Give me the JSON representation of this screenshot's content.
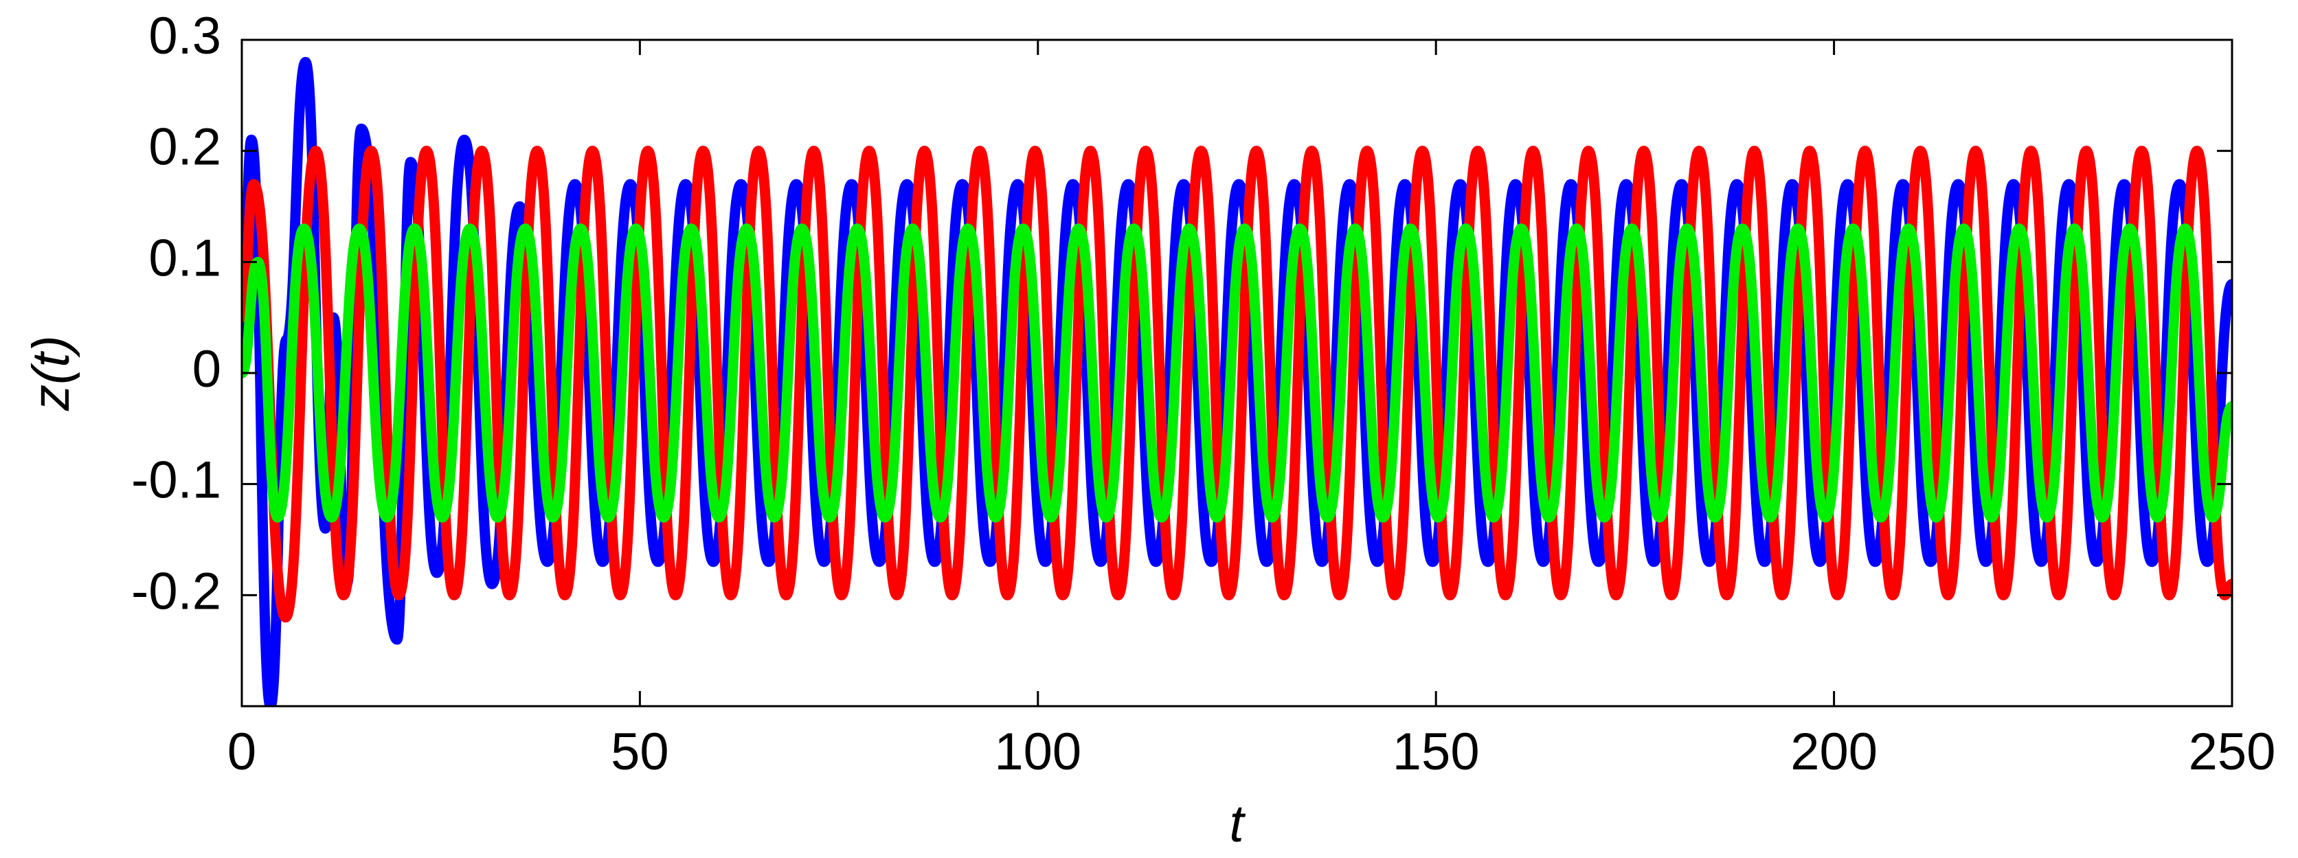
{
  "chart_data": {
    "type": "line",
    "xlabel": "t",
    "ylabel": "z(t)",
    "xlim": [
      0,
      250
    ],
    "ylim": [
      -0.3,
      0.3
    ],
    "xticks": [
      0,
      50,
      100,
      150,
      200,
      250
    ],
    "yticks": [
      -0.2,
      -0.1,
      0,
      0.1,
      0.2,
      0.3
    ],
    "series": [
      {
        "color": "#0000ff",
        "x": [
          0,
          1.2,
          3.6,
          5.6,
          8.0,
          10.5,
          11.5,
          13.2,
          15.0,
          19.5,
          21.2,
          24.5,
          27.95,
          31.43,
          34.9,
          38.38,
          41.85,
          45.33,
          48.8,
          52.28,
          55.75,
          59.23,
          62.7,
          66.18,
          69.65,
          73.13,
          76.6,
          80.08,
          83.55,
          87.03,
          90.5,
          93.98,
          97.45,
          100.93,
          104.4,
          107.88,
          111.35,
          114.83,
          118.3,
          121.78,
          125.25,
          128.73,
          132.2,
          135.68,
          139.15,
          142.63,
          146.1,
          149.58,
          153.05,
          156.53,
          160.0,
          163.48,
          166.95,
          170.43,
          173.9,
          177.38,
          180.85,
          184.33,
          187.8,
          191.28,
          194.75,
          198.23,
          201.7,
          205.18,
          208.65,
          212.13,
          215.6,
          219.08,
          222.55,
          226.03,
          229.5,
          232.98,
          236.45,
          239.93,
          243.4,
          246.88,
          250
        ],
        "values": [
          0,
          0.21,
          -0.3,
          0.03,
          0.28,
          -0.14,
          0.05,
          -0.19,
          0.22,
          -0.24,
          0.19,
          -0.18,
          0.21,
          -0.19,
          0.15,
          -0.17,
          0.17,
          -0.17,
          0.17,
          -0.17,
          0.17,
          -0.17,
          0.17,
          -0.17,
          0.17,
          -0.17,
          0.17,
          -0.17,
          0.17,
          -0.17,
          0.17,
          -0.17,
          0.17,
          -0.17,
          0.17,
          -0.17,
          0.17,
          -0.17,
          0.17,
          -0.17,
          0.17,
          -0.17,
          0.17,
          -0.17,
          0.17,
          -0.17,
          0.17,
          -0.17,
          0.17,
          -0.17,
          0.17,
          -0.17,
          0.17,
          -0.17,
          0.17,
          -0.17,
          0.17,
          -0.17,
          0.17,
          -0.17,
          0.17,
          -0.17,
          0.17,
          -0.17,
          0.17,
          -0.17,
          0.17,
          -0.17,
          0.17,
          -0.17,
          0.17,
          -0.17,
          0.17,
          -0.17,
          0.17,
          -0.17,
          0.08
        ]
      },
      {
        "color": "#ff0000",
        "x": [
          0,
          1.5,
          5.5,
          9.3,
          12.78,
          16.25,
          19.73,
          23.2,
          26.68,
          30.15,
          33.63,
          37.1,
          40.58,
          44.05,
          47.53,
          51.0,
          54.48,
          57.95,
          61.43,
          64.9,
          68.38,
          71.85,
          75.33,
          78.8,
          82.28,
          85.75,
          89.23,
          92.7,
          96.18,
          99.65,
          103.13,
          106.6,
          110.08,
          113.55,
          117.03,
          120.5,
          123.98,
          127.45,
          130.93,
          134.4,
          137.88,
          141.35,
          144.83,
          148.3,
          151.78,
          155.25,
          158.73,
          162.2,
          165.68,
          169.15,
          172.63,
          176.1,
          179.58,
          183.05,
          186.53,
          190.0,
          193.48,
          196.95,
          200.43,
          203.9,
          207.38,
          210.85,
          214.33,
          217.8,
          221.28,
          224.75,
          228.23,
          231.7,
          235.18,
          238.65,
          242.13,
          245.6,
          249.08,
          250
        ],
        "values": [
          0.05,
          0.17,
          -0.22,
          0.2,
          -0.2,
          0.2,
          -0.2,
          0.2,
          -0.2,
          0.2,
          -0.2,
          0.2,
          -0.2,
          0.2,
          -0.2,
          0.2,
          -0.2,
          0.2,
          -0.2,
          0.2,
          -0.2,
          0.2,
          -0.2,
          0.2,
          -0.2,
          0.2,
          -0.2,
          0.2,
          -0.2,
          0.2,
          -0.2,
          0.2,
          -0.2,
          0.2,
          -0.2,
          0.2,
          -0.2,
          0.2,
          -0.2,
          0.2,
          -0.2,
          0.2,
          -0.2,
          0.2,
          -0.2,
          0.2,
          -0.2,
          0.2,
          -0.2,
          0.2,
          -0.2,
          0.2,
          -0.2,
          0.2,
          -0.2,
          0.2,
          -0.2,
          0.2,
          -0.2,
          0.2,
          -0.2,
          0.2,
          -0.2,
          0.2,
          -0.2,
          0.2,
          -0.2,
          0.2,
          -0.2,
          0.2,
          -0.2,
          0.2,
          -0.2,
          -0.19
        ]
      },
      {
        "color": "#00ee00",
        "x": [
          0,
          2.0,
          4.5,
          7.8,
          11.28,
          14.75,
          18.23,
          21.7,
          25.18,
          28.65,
          32.13,
          35.6,
          39.08,
          42.55,
          46.03,
          49.5,
          52.98,
          56.45,
          59.93,
          63.4,
          66.88,
          70.35,
          73.83,
          77.3,
          80.78,
          84.25,
          87.73,
          91.2,
          94.68,
          98.15,
          101.63,
          105.1,
          108.58,
          112.05,
          115.53,
          119.0,
          122.48,
          125.95,
          129.43,
          132.9,
          136.38,
          139.85,
          143.33,
          146.8,
          150.28,
          153.75,
          157.23,
          160.7,
          164.18,
          167.65,
          171.13,
          174.6,
          178.08,
          181.55,
          185.03,
          188.5,
          191.98,
          195.45,
          198.93,
          202.4,
          205.88,
          209.35,
          212.83,
          216.3,
          219.78,
          223.25,
          226.73,
          230.2,
          233.68,
          237.15,
          240.63,
          244.1,
          247.58,
          250
        ],
        "values": [
          0,
          0.1,
          -0.13,
          0.13,
          -0.13,
          0.13,
          -0.13,
          0.13,
          -0.13,
          0.13,
          -0.13,
          0.13,
          -0.13,
          0.13,
          -0.13,
          0.13,
          -0.13,
          0.13,
          -0.13,
          0.13,
          -0.13,
          0.13,
          -0.13,
          0.13,
          -0.13,
          0.13,
          -0.13,
          0.13,
          -0.13,
          0.13,
          -0.13,
          0.13,
          -0.13,
          0.13,
          -0.13,
          0.13,
          -0.13,
          0.13,
          -0.13,
          0.13,
          -0.13,
          0.13,
          -0.13,
          0.13,
          -0.13,
          0.13,
          -0.13,
          0.13,
          -0.13,
          0.13,
          -0.13,
          0.13,
          -0.13,
          0.13,
          -0.13,
          0.13,
          -0.13,
          0.13,
          -0.13,
          0.13,
          -0.13,
          0.13,
          -0.13,
          0.13,
          -0.13,
          0.13,
          -0.13,
          0.13,
          -0.13,
          0.13,
          -0.13,
          0.13,
          -0.13,
          -0.03
        ]
      }
    ]
  }
}
